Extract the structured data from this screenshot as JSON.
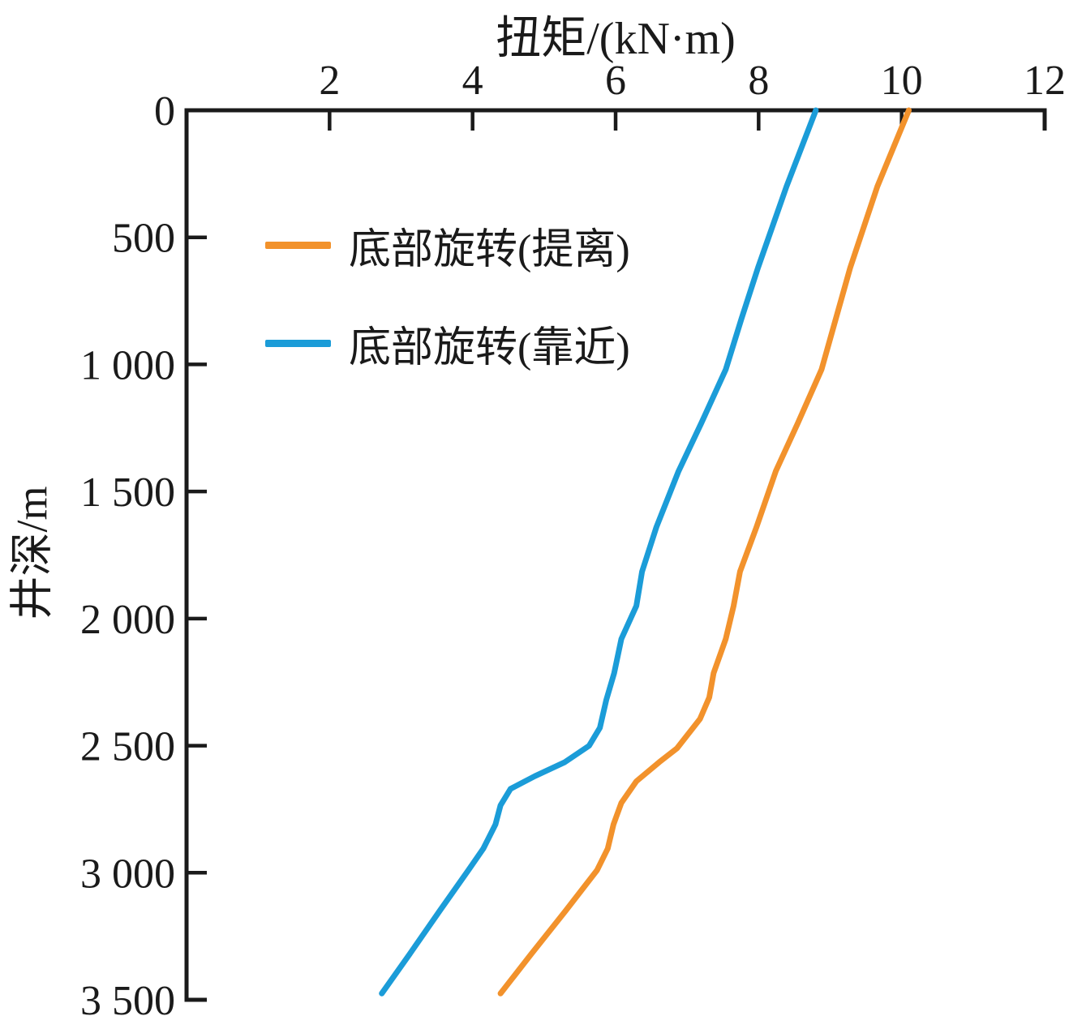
{
  "chart_data": {
    "type": "line",
    "title": "扭矩/(kN·m)",
    "xlabel": "扭矩/(kN·m)",
    "ylabel": "井深/m",
    "axis_color": "#1a1a1a",
    "grid": false,
    "legend_position": "upper-left-inside",
    "x_axis": {
      "position": "top",
      "min": 0,
      "max": 12,
      "ticks": [
        2,
        4,
        6,
        8,
        10,
        12
      ],
      "tick_labels": [
        "2",
        "4",
        "6",
        "8",
        "10",
        "12"
      ]
    },
    "y_axis": {
      "position": "left",
      "inverted": true,
      "min": 0,
      "max": 3500,
      "ticks": [
        0,
        500,
        1000,
        1500,
        2000,
        2500,
        3000,
        3500
      ],
      "tick_labels": [
        "0",
        "500",
        "1 000",
        "1 500",
        "2 000",
        "2 500",
        "3 000",
        "3 500"
      ]
    },
    "series": [
      {
        "name": "底部旋转(提离)",
        "color": "#F2922C",
        "units": {
          "x": "kN·m",
          "y": "m"
        },
        "points": [
          [
            10.1,
            0
          ],
          [
            9.66,
            300
          ],
          [
            9.28,
            620
          ],
          [
            8.88,
            1020
          ],
          [
            8.55,
            1230
          ],
          [
            8.24,
            1420
          ],
          [
            7.97,
            1640
          ],
          [
            7.74,
            1815
          ],
          [
            7.65,
            1950
          ],
          [
            7.54,
            2080
          ],
          [
            7.37,
            2215
          ],
          [
            7.31,
            2310
          ],
          [
            7.18,
            2395
          ],
          [
            6.86,
            2510
          ],
          [
            6.61,
            2565
          ],
          [
            6.29,
            2640
          ],
          [
            6.08,
            2725
          ],
          [
            5.97,
            2810
          ],
          [
            5.89,
            2905
          ],
          [
            5.74,
            2990
          ],
          [
            5.3,
            3150
          ],
          [
            4.82,
            3320
          ],
          [
            4.39,
            3475
          ]
        ]
      },
      {
        "name": "底部旋转(靠近)",
        "color": "#1B9CD8",
        "units": {
          "x": "kN·m",
          "y": "m"
        },
        "points": [
          [
            8.8,
            0
          ],
          [
            8.39,
            300
          ],
          [
            7.99,
            620
          ],
          [
            7.76,
            820
          ],
          [
            7.54,
            1020
          ],
          [
            7.2,
            1230
          ],
          [
            6.88,
            1420
          ],
          [
            6.57,
            1640
          ],
          [
            6.37,
            1815
          ],
          [
            6.29,
            1950
          ],
          [
            6.08,
            2080
          ],
          [
            5.98,
            2215
          ],
          [
            5.87,
            2320
          ],
          [
            5.78,
            2430
          ],
          [
            5.63,
            2500
          ],
          [
            5.29,
            2565
          ],
          [
            4.87,
            2620
          ],
          [
            4.53,
            2670
          ],
          [
            4.39,
            2735
          ],
          [
            4.32,
            2810
          ],
          [
            4.15,
            2905
          ],
          [
            3.94,
            2990
          ],
          [
            3.54,
            3150
          ],
          [
            3.12,
            3320
          ],
          [
            2.73,
            3475
          ]
        ]
      }
    ]
  }
}
